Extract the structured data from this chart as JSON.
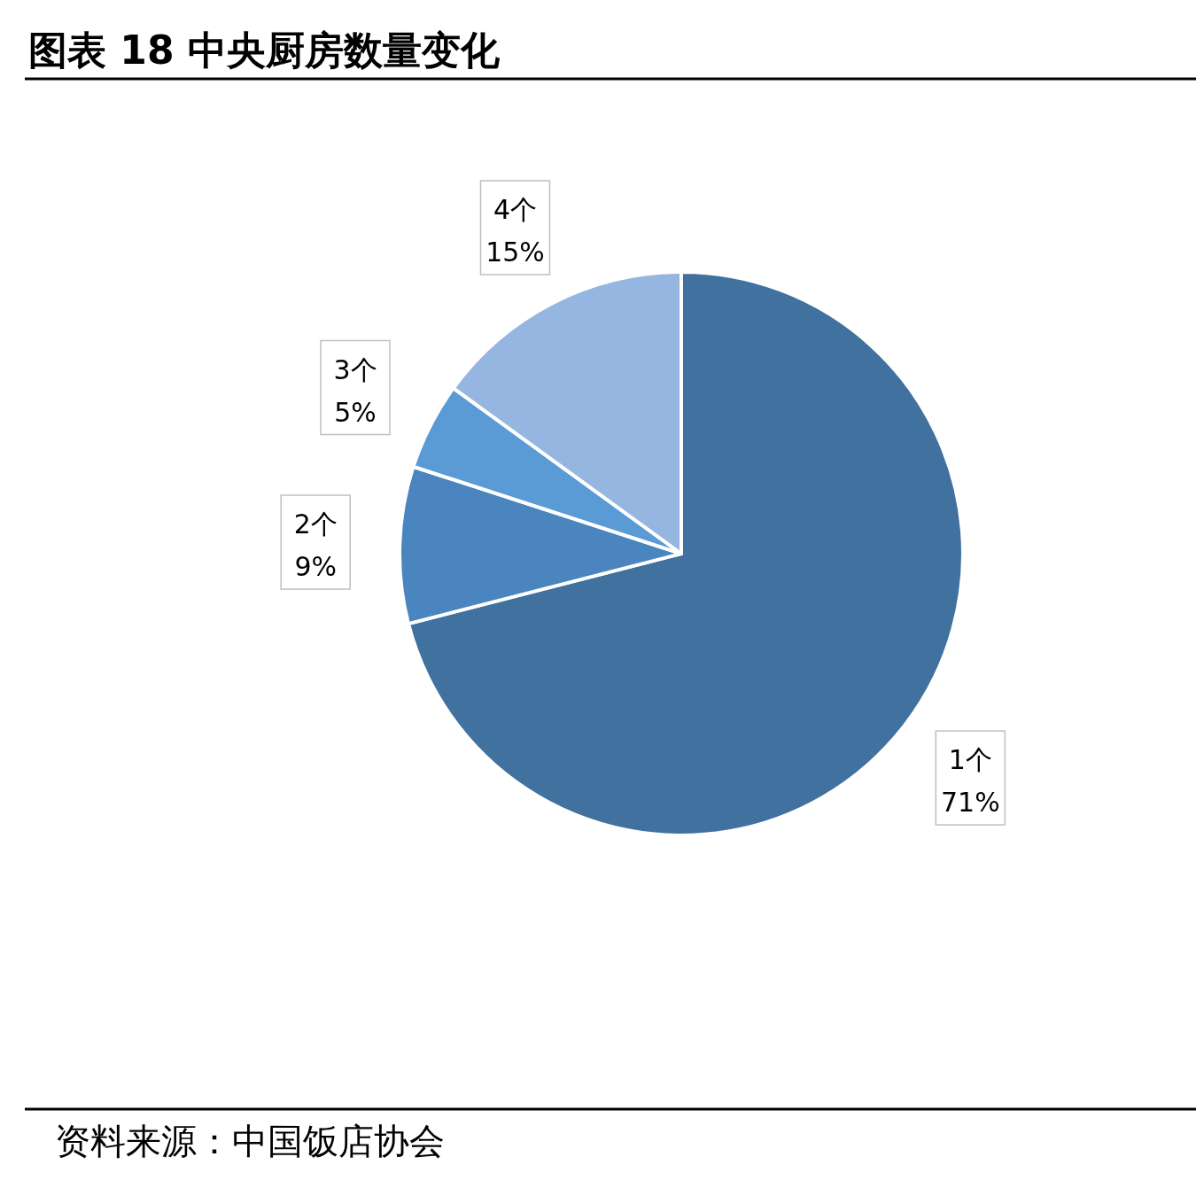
{
  "chart_data": {
    "type": "pie",
    "title": "图表 18 中央厨房数量变化",
    "categories": [
      "1个",
      "2个",
      "3个",
      "4个"
    ],
    "values": [
      71,
      9,
      5,
      15
    ],
    "colors": [
      "#41719f",
      "#4a85bf",
      "#5b9bd5",
      "#95b6e0"
    ],
    "value_labels": [
      "71%",
      "9%",
      "5%",
      "15%"
    ],
    "annotations": [
      "资料来源：中国饭店协会"
    ]
  }
}
